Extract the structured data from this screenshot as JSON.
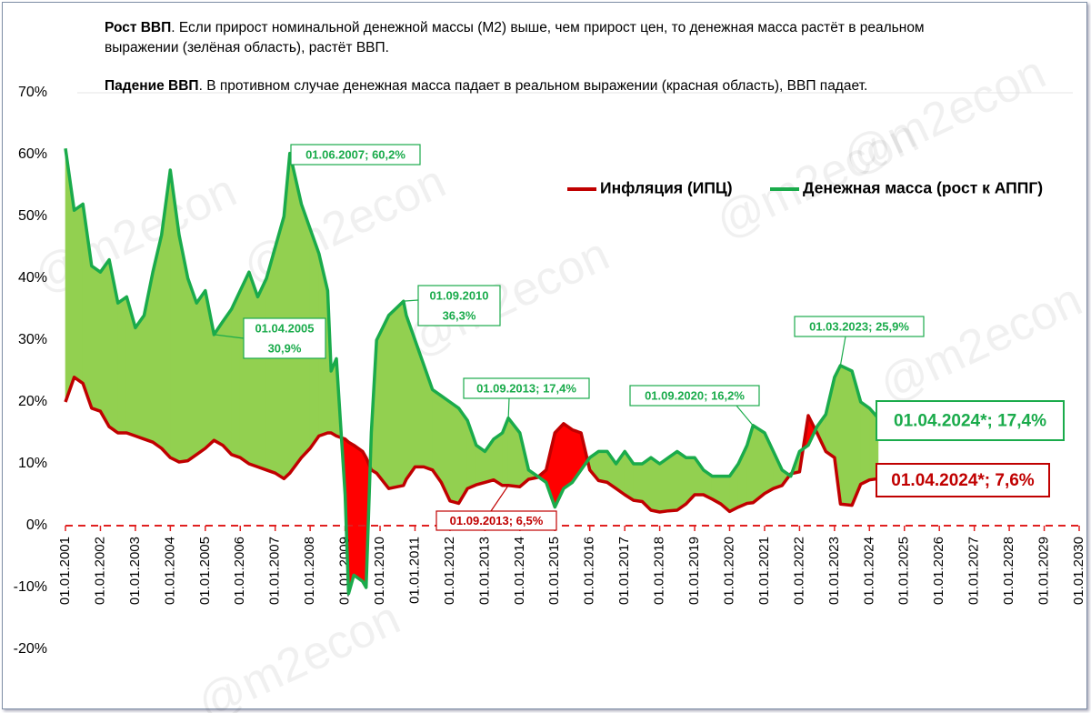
{
  "chart_data": {
    "type": "line",
    "description": [
      {
        "bold": "Рост ВВП",
        "text": ". Если прирост номинальной денежной  массы (М2) выше, чем прирост цен,  то денежная масса растёт в реальном выражении (зелёная область), растёт ВВП."
      },
      {
        "bold": "Падение ВВП",
        "text": ". В противном случае денежная масса падает в реальном выражении (красная область), ВВП падает."
      }
    ],
    "watermark": "@m2econ",
    "legend": "top-right",
    "x": [
      2001.0,
      2001.25,
      2001.5,
      2001.75,
      2002.0,
      2002.25,
      2002.5,
      2002.75,
      2003.0,
      2003.25,
      2003.5,
      2003.75,
      2004.0,
      2004.25,
      2004.5,
      2004.75,
      2005.0,
      2005.25,
      2005.5,
      2005.75,
      2006.0,
      2006.25,
      2006.5,
      2006.75,
      2007.0,
      2007.25,
      2007.42,
      2007.75,
      2008.0,
      2008.25,
      2008.5,
      2008.6,
      2008.75,
      2009.0,
      2009.1,
      2009.25,
      2009.5,
      2009.6,
      2009.75,
      2009.9,
      2010.25,
      2010.67,
      2010.75,
      2011.0,
      2011.25,
      2011.5,
      2011.75,
      2012.0,
      2012.25,
      2012.5,
      2012.75,
      2013.0,
      2013.25,
      2013.5,
      2013.67,
      2014.0,
      2014.25,
      2014.5,
      2014.75,
      2015.0,
      2015.25,
      2015.5,
      2015.75,
      2016.0,
      2016.25,
      2016.5,
      2016.75,
      2017.0,
      2017.25,
      2017.5,
      2017.75,
      2018.0,
      2018.25,
      2018.5,
      2018.75,
      2019.0,
      2019.25,
      2019.5,
      2019.75,
      2020.0,
      2020.25,
      2020.5,
      2020.67,
      2021.0,
      2021.25,
      2021.5,
      2021.75,
      2022.0,
      2022.25,
      2022.5,
      2022.75,
      2023.0,
      2023.17,
      2023.5,
      2023.75,
      2024.0,
      2024.25
    ],
    "series": [
      {
        "name": "Инфляция (ИПЦ)",
        "color": "#c00000",
        "fill_color": "#ff0000",
        "values": [
          20,
          24,
          23,
          19,
          18.5,
          16,
          15,
          15,
          14.5,
          14,
          13.5,
          12.5,
          11,
          10.3,
          10.5,
          11.5,
          12.5,
          13.8,
          13,
          11.5,
          11,
          10,
          9.5,
          9,
          8.5,
          7.6,
          8.5,
          11,
          12.5,
          14.5,
          15,
          15,
          14.5,
          14,
          13.5,
          13,
          12,
          11,
          9,
          8.5,
          6,
          6.5,
          7.5,
          9.5,
          9.5,
          9,
          7,
          4,
          3.6,
          6,
          6.6,
          7,
          7.4,
          6.5,
          6.5,
          6.3,
          7.5,
          7.8,
          9,
          15,
          16.5,
          15.5,
          15,
          9,
          7.3,
          7,
          6,
          5,
          4.1,
          3.9,
          2.5,
          2.2,
          2.4,
          2.5,
          3.5,
          5,
          5,
          4.3,
          3.5,
          2.3,
          3,
          3.6,
          3.7,
          5.2,
          6,
          6.5,
          8.4,
          8.7,
          17.8,
          15,
          12,
          11,
          3.5,
          3.3,
          6.7,
          7.4,
          7.6
        ]
      },
      {
        "name": "Денежная масса (рост к АППГ)",
        "color": "#1aab4b",
        "fill_color": "#92d050",
        "values": [
          61,
          51,
          52,
          42,
          41,
          43,
          36,
          37,
          32,
          34,
          41,
          47,
          57.5,
          47,
          40,
          36,
          38,
          30.9,
          33,
          35,
          38,
          41,
          37,
          40,
          45,
          50,
          60.2,
          52,
          48,
          44,
          38,
          25,
          27,
          5,
          -11,
          -8,
          -9,
          -10,
          15,
          30,
          34,
          36.3,
          34,
          30,
          26,
          22,
          21,
          20,
          19,
          17,
          13,
          12,
          14,
          15,
          17.4,
          15,
          9,
          8,
          7,
          3,
          6,
          7,
          9,
          11,
          12,
          12,
          10,
          12,
          10,
          10,
          11,
          10,
          11,
          12,
          11,
          11,
          9,
          8,
          8,
          8,
          10,
          13,
          16.2,
          15,
          12,
          9,
          8,
          12,
          13,
          16,
          18,
          24,
          25.9,
          25,
          20,
          19,
          17.4
        ]
      }
    ],
    "annotations": [
      [
        "01.06.2007; 60,2%"
      ],
      [
        "01.04.2005",
        "30,9%"
      ],
      [
        "01.09.2010",
        "36,3%"
      ],
      [
        "01.09.2013; 17,4%"
      ],
      [
        "01.09.2013; 6,5%"
      ],
      [
        "01.09.2020; 16,2%"
      ],
      [
        "01.03.2023; 25,9%"
      ],
      [
        "01.04.2024*; 17,4%"
      ],
      [
        "01.04.2024*; 7,6%"
      ]
    ],
    "xlim": [
      2001,
      2030
    ],
    "xticks": [
      {
        "value": 2001,
        "label": "01.01.2001"
      },
      {
        "value": 2002,
        "label": "01.01.2002"
      },
      {
        "value": 2003,
        "label": "01.01.2003"
      },
      {
        "value": 2004,
        "label": "01.01.2004"
      },
      {
        "value": 2005,
        "label": "01.01.2005"
      },
      {
        "value": 2006,
        "label": "01.01.2006"
      },
      {
        "value": 2007,
        "label": "01.01.2007"
      },
      {
        "value": 2008,
        "label": "01.01.2008"
      },
      {
        "value": 2009,
        "label": "01.01.2009"
      },
      {
        "value": 2010,
        "label": "01.01.2010"
      },
      {
        "value": 2011,
        "label": "01.01.2011"
      },
      {
        "value": 2012,
        "label": "01.01.2012"
      },
      {
        "value": 2013,
        "label": "01.01.2013"
      },
      {
        "value": 2014,
        "label": "01.01.2014"
      },
      {
        "value": 2015,
        "label": "01.01.2015"
      },
      {
        "value": 2016,
        "label": "01.01.2016"
      },
      {
        "value": 2017,
        "label": "01.01.2017"
      },
      {
        "value": 2018,
        "label": "01.01.2018"
      },
      {
        "value": 2019,
        "label": "01.01.2019"
      },
      {
        "value": 2020,
        "label": "01.01.2020"
      },
      {
        "value": 2021,
        "label": "01.01.2021"
      },
      {
        "value": 2022,
        "label": "01.01.2022"
      },
      {
        "value": 2023,
        "label": "01.01.2023"
      },
      {
        "value": 2024,
        "label": "01.01.2024"
      },
      {
        "value": 2025,
        "label": "01.01.2025"
      },
      {
        "value": 2026,
        "label": "01.01.2026"
      },
      {
        "value": 2027,
        "label": "01.01.2027"
      },
      {
        "value": 2028,
        "label": "01.01.2028"
      },
      {
        "value": 2029,
        "label": "01.01.2029"
      },
      {
        "value": 2030,
        "label": "01.01.2030"
      }
    ],
    "ylim": [
      -20,
      70
    ],
    "yticks": [
      {
        "value": -20,
        "label": "-20%"
      },
      {
        "value": -10,
        "label": "-10%"
      },
      {
        "value": 0,
        "label": "0%"
      },
      {
        "value": 10,
        "label": "10%"
      },
      {
        "value": 20,
        "label": "20%"
      },
      {
        "value": 30,
        "label": "30%"
      },
      {
        "value": 40,
        "label": "40%"
      },
      {
        "value": 50,
        "label": "50%"
      },
      {
        "value": 60,
        "label": "60%"
      },
      {
        "value": 70,
        "label": "70%"
      }
    ],
    "grid": false
  }
}
